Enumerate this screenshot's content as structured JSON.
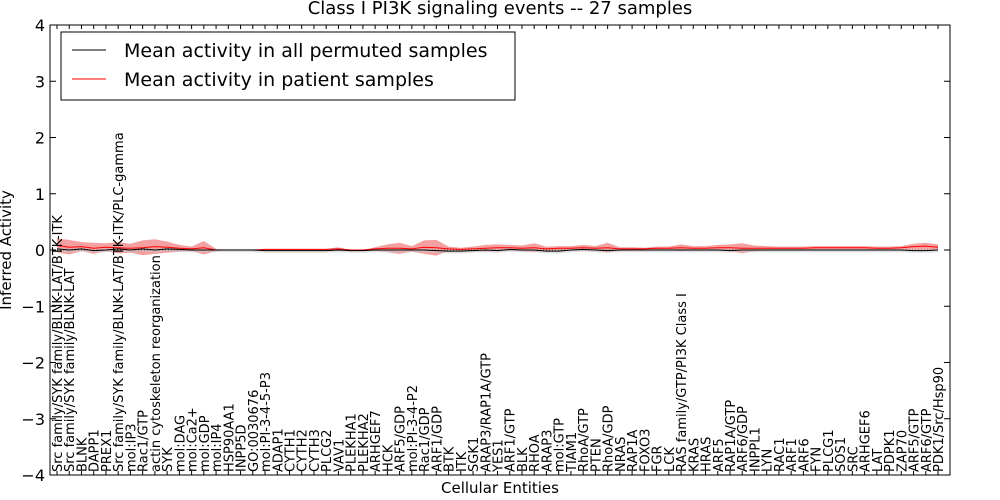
{
  "chart_data": {
    "type": "line",
    "title": "Class I PI3K signaling events -- 27 samples",
    "xlabel": "Cellular Entities",
    "ylabel": "Inferred Activity",
    "ylim": [
      -4,
      4
    ],
    "yticks": [
      -4,
      -3,
      -2,
      -1,
      0,
      1,
      2,
      3,
      4
    ],
    "ytick_labels": [
      "−4",
      "−3",
      "−2",
      "−1",
      "0",
      "1",
      "2",
      "3",
      "4"
    ],
    "grid": false,
    "legend_position": "top-left",
    "categories": [
      "Src family/SYK family/BLNK-LAT/BTK-ITK",
      "Src family/SYK family/BLNK-LAT",
      "BLNK",
      "DAPP1",
      "PREX1",
      "Src family/SYK family/BLNK-LAT/BTK-ITK/PLC-gamma",
      "mol:IP3",
      "Rac1/GTP",
      "actin cytoskeleton reorganization",
      "SYK",
      "mol:DAG",
      "mol:Ca2+",
      "mol:GDP",
      "mol:IP4",
      "HSP90AA1",
      "INPP5D",
      "GO:0030676",
      "mol:PI-3-4-5-P3",
      "ADAP1",
      "CYTH1",
      "CYTH2",
      "CYTH3",
      "PLCG2",
      "VAV1",
      "PLEKHA1",
      "PLEKHA2",
      "ARHGEF7",
      "HCK",
      "ARF5/GDP",
      "mol:PI-3-4-P2",
      "Rac1/GDP",
      "ARF1/GDP",
      "BTK",
      "ITK",
      "SGK1",
      "ARAP3/RAP1A/GTP",
      "YES1",
      "ARF1/GTP",
      "BLK",
      "RHOA",
      "ARAP3",
      "mol:GTP",
      "TIAM1",
      "RhoA/GTP",
      "PTEN",
      "RhoA/GDP",
      "NRAS",
      "RAP1A",
      "FOXO3",
      "FGR",
      "LCK",
      "RAS family/GTP/PI3K Class I",
      "KRAS",
      "HRAS",
      "ARF5",
      "RAP1A/GTP",
      "ARF6/GDP",
      "INPPL1",
      "LYN",
      "RAC1",
      "ARF1",
      "ARF6",
      "FYN",
      "PLCG1",
      "SOS1",
      "SRC",
      "ARHGEF6",
      "LAT",
      "PDPK1",
      "ZAP70",
      "ARF5/GTP",
      "ARF6/GTP",
      "PDK1/Src/Hsp90"
    ],
    "series": [
      {
        "name": "Mean activity in all permuted samples",
        "color": "#000000",
        "values": [
          0.02,
          0.0,
          0.02,
          -0.01,
          0.0,
          0.02,
          0.0,
          0.02,
          0.0,
          0.02,
          0.01,
          0.0,
          0.0,
          0.0,
          0.0,
          0.0,
          0.0,
          -0.01,
          -0.01,
          -0.01,
          -0.01,
          -0.01,
          -0.01,
          0.0,
          -0.01,
          -0.01,
          0.0,
          0.0,
          0.0,
          0.0,
          0.0,
          -0.01,
          -0.02,
          -0.02,
          -0.01,
          0.0,
          -0.01,
          0.01,
          0.0,
          0.0,
          -0.02,
          -0.02,
          0.0,
          0.01,
          0.0,
          -0.01,
          0.0,
          0.0,
          0.0,
          0.0,
          0.0,
          0.0,
          0.0,
          0.0,
          0.0,
          -0.01,
          0.0,
          0.0,
          0.0,
          0.0,
          0.0,
          0.0,
          0.0,
          0.0,
          0.0,
          0.0,
          0.0,
          0.0,
          0.0,
          0.0,
          -0.01,
          -0.01,
          0.0
        ]
      },
      {
        "name": "Mean activity in patient samples",
        "color": "#ff0000",
        "band_color": "#f08080",
        "values": [
          0.08,
          0.05,
          0.06,
          0.03,
          0.05,
          0.04,
          0.03,
          0.04,
          0.06,
          0.05,
          0.03,
          0.02,
          0.04,
          0.0,
          0.0,
          0.0,
          0.0,
          0.01,
          0.01,
          0.01,
          0.01,
          0.01,
          0.01,
          0.02,
          0.0,
          0.0,
          0.02,
          0.03,
          0.03,
          0.02,
          0.05,
          0.04,
          0.02,
          0.01,
          0.02,
          0.03,
          0.04,
          0.04,
          0.03,
          0.04,
          0.02,
          0.03,
          0.03,
          0.04,
          0.03,
          0.04,
          0.02,
          0.02,
          0.02,
          0.03,
          0.03,
          0.04,
          0.03,
          0.03,
          0.04,
          0.04,
          0.03,
          0.03,
          0.03,
          0.03,
          0.03,
          0.03,
          0.04,
          0.04,
          0.04,
          0.04,
          0.04,
          0.03,
          0.03,
          0.04,
          0.06,
          0.07,
          0.05
        ],
        "band_half_width": [
          0.12,
          0.13,
          0.08,
          0.1,
          0.07,
          0.1,
          0.08,
          0.13,
          0.13,
          0.1,
          0.06,
          0.04,
          0.12,
          0.02,
          0.0,
          0.0,
          0.0,
          0.01,
          0.01,
          0.01,
          0.01,
          0.01,
          0.01,
          0.03,
          0.0,
          0.0,
          0.03,
          0.07,
          0.1,
          0.05,
          0.12,
          0.14,
          0.04,
          0.03,
          0.04,
          0.06,
          0.06,
          0.05,
          0.05,
          0.08,
          0.04,
          0.04,
          0.04,
          0.05,
          0.04,
          0.09,
          0.03,
          0.03,
          0.02,
          0.03,
          0.03,
          0.06,
          0.04,
          0.04,
          0.05,
          0.06,
          0.09,
          0.05,
          0.04,
          0.03,
          0.03,
          0.03,
          0.03,
          0.03,
          0.03,
          0.03,
          0.03,
          0.03,
          0.03,
          0.03,
          0.05,
          0.06,
          0.05
        ]
      }
    ]
  }
}
